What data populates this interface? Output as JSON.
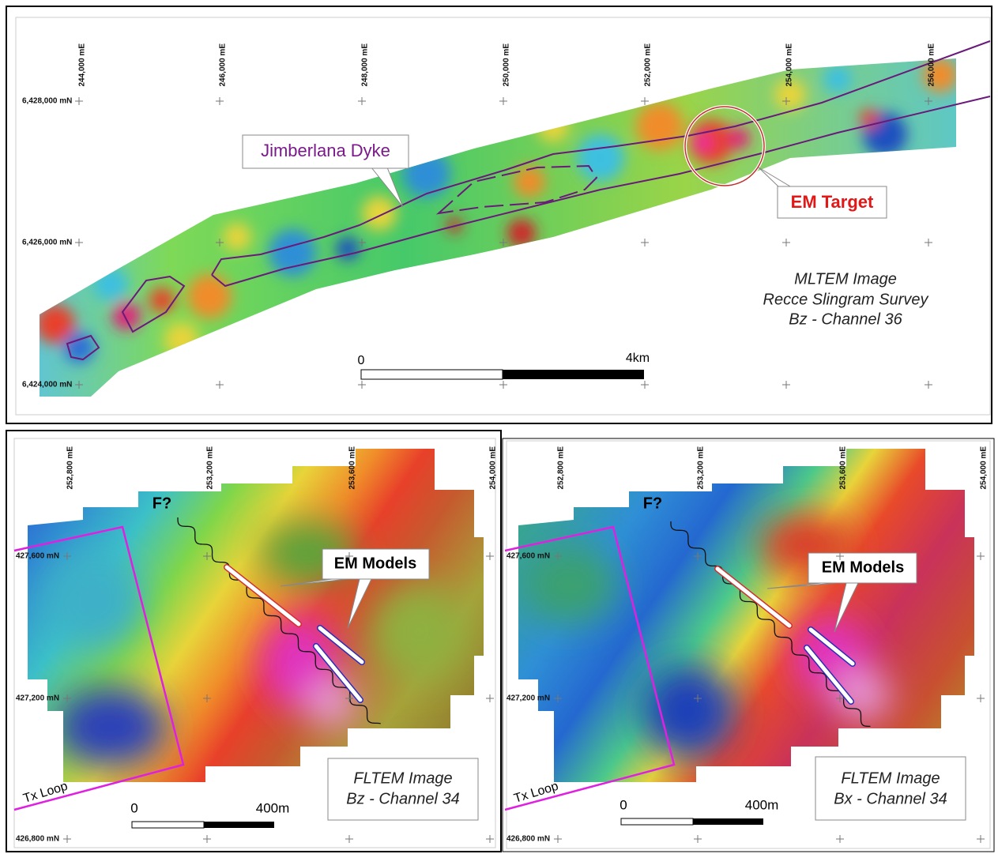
{
  "top": {
    "eastings": [
      "244,000 mE",
      "246,000 mE",
      "248,000 mE",
      "250,000 mE",
      "252,000 mE",
      "254,000 mE",
      "256,000 mE"
    ],
    "northings": [
      "6,428,000 mN",
      "6,426,000 mN",
      "6,424,000 mN"
    ],
    "labels": {
      "dyke": "Jimberlana Dyke",
      "target": "EM Target"
    },
    "caption": [
      "MLTEM Image",
      "Recce Slingram Survey",
      "Bz - Channel 36"
    ],
    "scale": [
      "0",
      "4km"
    ]
  },
  "bottom_left": {
    "eastings": [
      "252,800 mE",
      "253,200 mE",
      "253,600 mE",
      "254,000 mE"
    ],
    "northings": [
      "427,600 mN",
      "427,200 mN",
      "426,800 mN"
    ],
    "fault": "F?",
    "models": "EM Models",
    "loop": "Tx Loop",
    "caption": [
      "FLTEM Image",
      "Bz - Channel 34"
    ],
    "scale": [
      "0",
      "400m"
    ]
  },
  "bottom_right": {
    "eastings": [
      "252,800 mE",
      "253,200 mE",
      "253,600 mE",
      "254,000 mE"
    ],
    "northings": [
      "427,600 mN",
      "427,200 mN",
      "426,800 mN"
    ],
    "fault": "F?",
    "models": "EM Models",
    "loop": "Tx Loop",
    "caption": [
      "FLTEM Image",
      "Bx - Channel 34"
    ],
    "scale": [
      "0",
      "400m"
    ]
  }
}
